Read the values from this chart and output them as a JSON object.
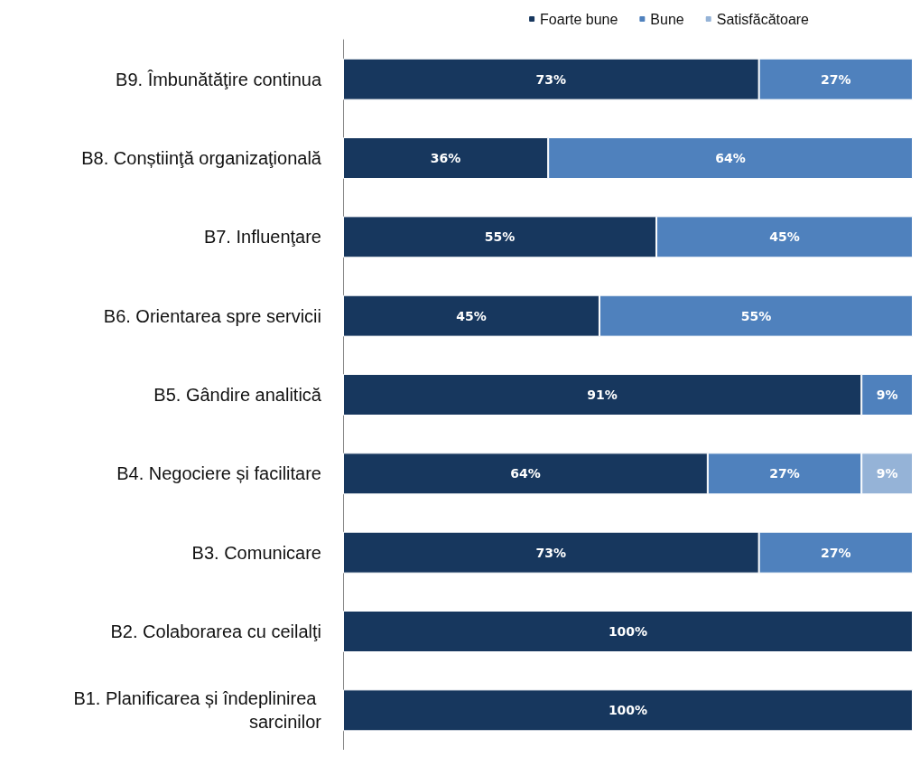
{
  "chart_data": {
    "type": "bar",
    "orientation": "horizontal",
    "stacked": true,
    "legend": "top right",
    "xlim": [
      0,
      100
    ],
    "tick_labels": "y",
    "grid": false,
    "categories": [
      "B9. Îmbunătăţire continua",
      "B8. Conștiinţă organizaţională",
      "B7. Influenţare",
      "B6. Orientarea spre servicii",
      "B5. Gândire analitică",
      "B4. Negociere și facilitare",
      "B3. Comunicare",
      "B2. Colaborarea cu ceilalţi",
      "B1. Planificarea și îndeplinirea sarcinilor"
    ],
    "series": [
      {
        "name": "Foarte bune",
        "color": "#17375e",
        "values": [
          73,
          36,
          55,
          45,
          91,
          64,
          73,
          100,
          100
        ],
        "value_labels": [
          "73%",
          "36%",
          "55%",
          "45%",
          "91%",
          "64%",
          "73%",
          "100%",
          "100%"
        ]
      },
      {
        "name": "Bune",
        "color": "#4f81bd",
        "values": [
          27,
          64,
          45,
          55,
          9,
          27,
          27,
          null,
          null
        ],
        "value_labels": [
          "27%",
          "64%",
          "45%",
          "55%",
          "9%",
          "27%",
          "27%",
          null,
          null
        ]
      },
      {
        "name": "Satisfăcătoare",
        "color": "#95b3d7",
        "values": [
          null,
          null,
          null,
          null,
          null,
          9,
          null,
          null,
          null
        ],
        "value_labels": [
          null,
          null,
          null,
          null,
          null,
          "9%",
          null,
          null,
          null
        ]
      }
    ]
  }
}
